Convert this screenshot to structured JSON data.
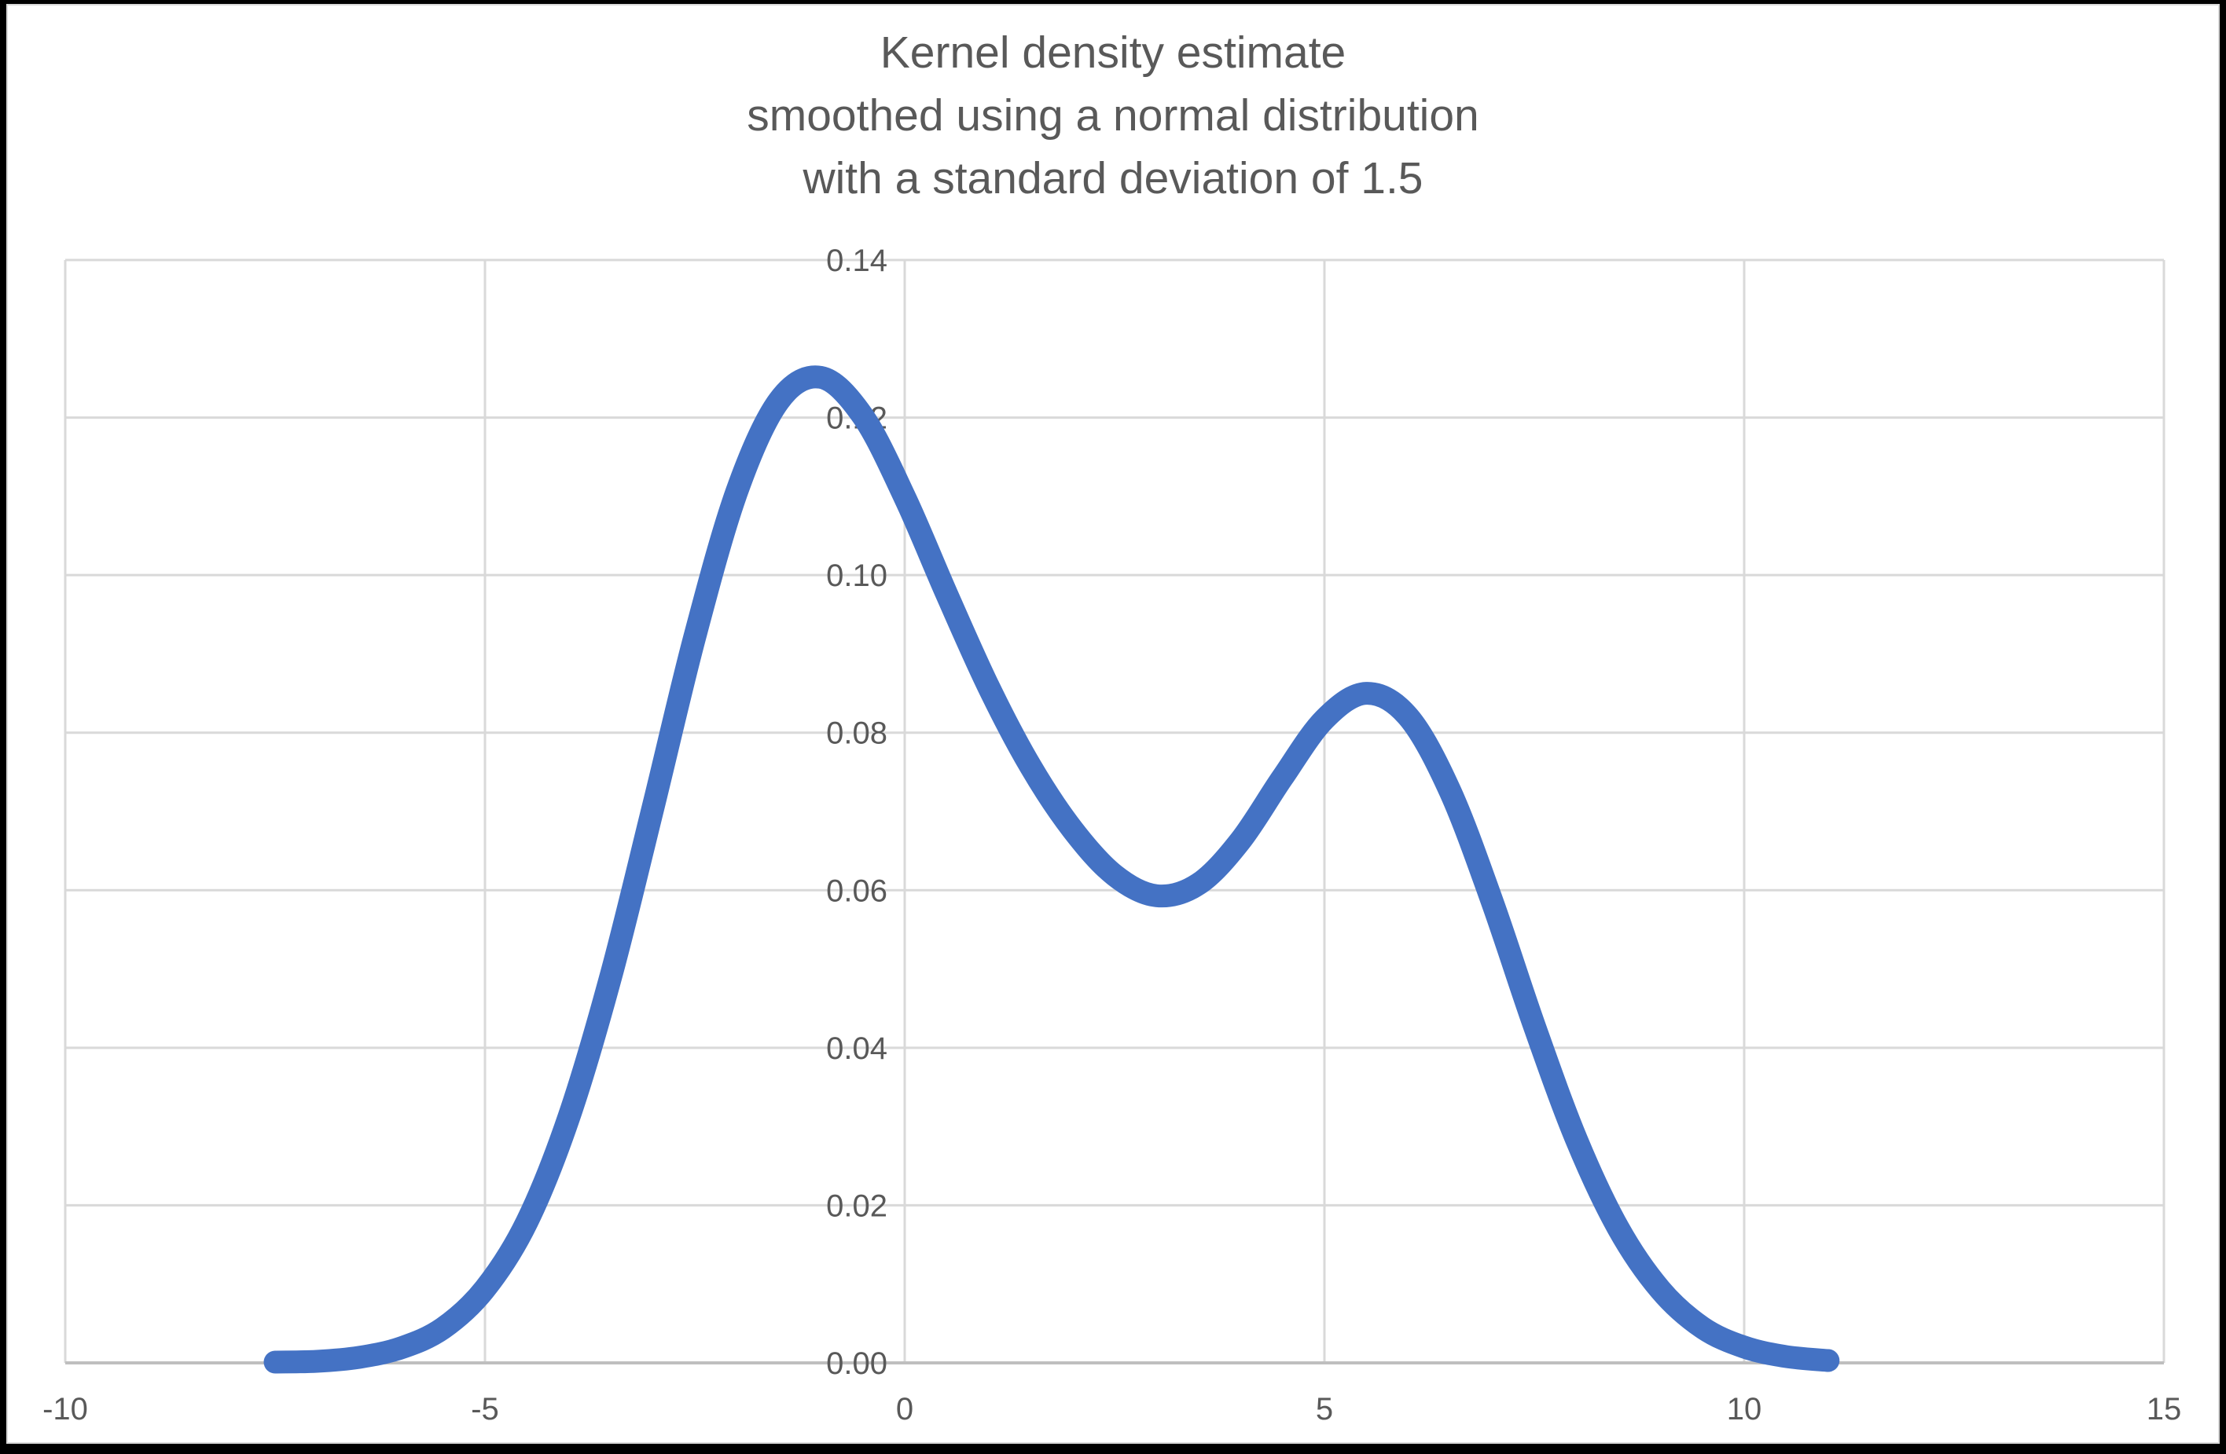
{
  "chart": {
    "title": "Kernel density estimate\nsmoothed using a normal distribution\nwith a standard deviation of 1.5"
  },
  "chart_data": {
    "type": "line",
    "title": "Kernel density estimate smoothed using a normal distribution with a standard deviation of 1.5",
    "title_lines": [
      "Kernel density estimate",
      "smoothed using a normal distribution",
      "with a standard deviation of 1.5"
    ],
    "xlabel": "",
    "ylabel": "",
    "grid": true,
    "legend": false,
    "x_axis": {
      "min": -10,
      "max": 15,
      "tick_interval": 5,
      "ticks": [
        {
          "value": -10,
          "label": "-10"
        },
        {
          "value": -5,
          "label": "-5"
        },
        {
          "value": 0,
          "label": "0"
        },
        {
          "value": 5,
          "label": "5"
        },
        {
          "value": 10,
          "label": "10"
        },
        {
          "value": 15,
          "label": "15"
        }
      ]
    },
    "y_axis": {
      "min": 0,
      "max": 0.14,
      "tick_interval": 0.02,
      "labels_at_x": 0,
      "ticks": [
        {
          "value": 0.0,
          "label": "0.00"
        },
        {
          "value": 0.02,
          "label": "0.02"
        },
        {
          "value": 0.04,
          "label": "0.04"
        },
        {
          "value": 0.06,
          "label": "0.06"
        },
        {
          "value": 0.08,
          "label": "0.08"
        },
        {
          "value": 0.1,
          "label": "0.10"
        },
        {
          "value": 0.12,
          "label": "0.12"
        },
        {
          "value": 0.14,
          "label": "0.14"
        }
      ]
    },
    "series": [
      {
        "name": "kernel-density-estimate",
        "color": "#4472C4",
        "stroke_width": 29,
        "x": [
          -7.5,
          -7.0,
          -6.5,
          -6.0,
          -5.5,
          -5.0,
          -4.5,
          -4.0,
          -3.5,
          -3.0,
          -2.5,
          -2.0,
          -1.5,
          -1.0,
          -0.5,
          0.0,
          0.5,
          1.0,
          1.5,
          2.0,
          2.5,
          3.0,
          3.5,
          4.0,
          4.5,
          5.0,
          5.5,
          6.0,
          6.5,
          7.0,
          7.5,
          8.0,
          8.5,
          9.0,
          9.5,
          10.0,
          10.5,
          11.0
        ],
        "y": [
          0.0001,
          0.0002,
          0.0007,
          0.0019,
          0.0044,
          0.0094,
          0.0179,
          0.0312,
          0.0491,
          0.0704,
          0.0922,
          0.1106,
          0.1221,
          0.1251,
          0.1202,
          0.1099,
          0.0976,
          0.0858,
          0.0757,
          0.0677,
          0.0619,
          0.0593,
          0.0608,
          0.0663,
          0.0743,
          0.0817,
          0.085,
          0.082,
          0.0725,
          0.0585,
          0.0428,
          0.0284,
          0.0171,
          0.0093,
          0.0045,
          0.002,
          0.0008,
          0.0003
        ]
      }
    ],
    "colors": {
      "line": "#4472C4",
      "gridline": "#D9D9D9",
      "axis_line": "#BFBFBF",
      "text": "#595959",
      "background": "#FFFFFF",
      "frame": "#000000"
    }
  }
}
